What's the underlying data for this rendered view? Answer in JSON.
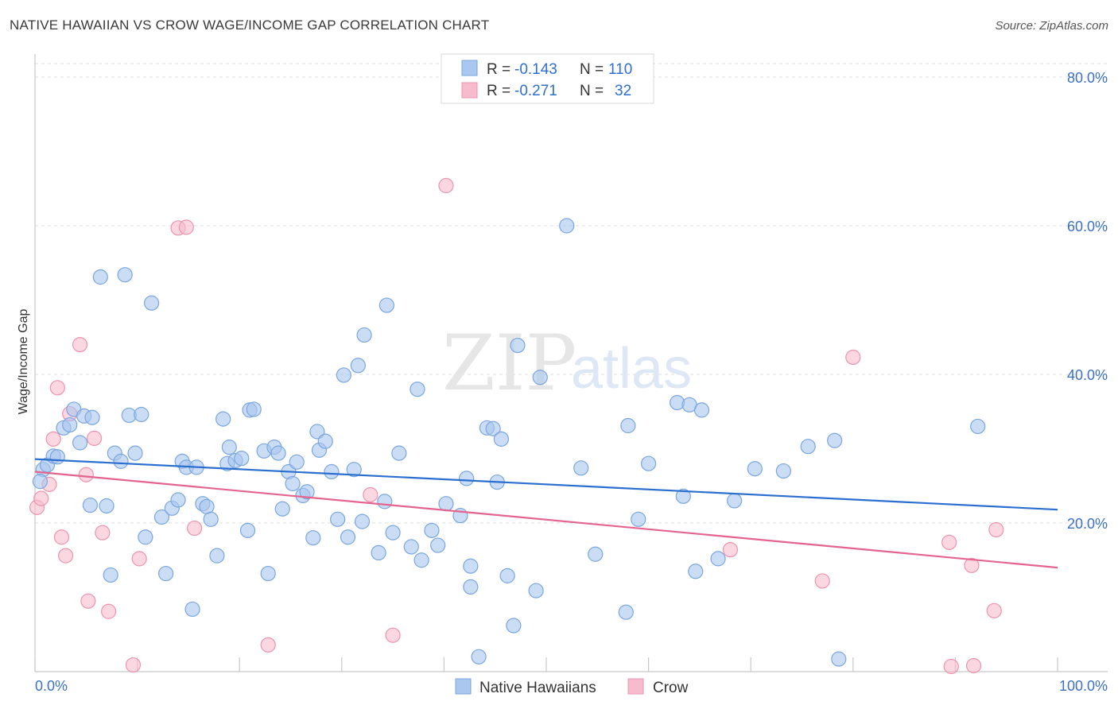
{
  "header": {
    "title": "NATIVE HAWAIIAN VS CROW WAGE/INCOME GAP CORRELATION CHART",
    "source": "Source: ZipAtlas.com"
  },
  "watermark": {
    "zip": "ZIP",
    "atlas": "atlas"
  },
  "colors": {
    "blue_fill": "#a9c7ef",
    "blue_stroke": "#7aa6df",
    "blue_line": "#2a6fd0",
    "pink_fill": "#f6bccd",
    "pink_stroke": "#ee93ae",
    "pink_line": "#e4648f",
    "grid": "#dcdcdc",
    "axis_label": "#3a70c6"
  },
  "legend": {
    "rows": [
      {
        "r_label": "R =",
        "r_value": "-0.143",
        "n_label": "N =",
        "n_value": "110",
        "color": "blue"
      },
      {
        "r_label": "R =",
        "r_value": "-0.271",
        "n_label": "N =",
        "n_value": "32",
        "color": "pink"
      }
    ]
  },
  "bottom_legend": [
    {
      "label": "Native Hawaiians",
      "color": "blue"
    },
    {
      "label": "Crow",
      "color": "pink"
    }
  ],
  "chart_data": {
    "type": "scatter",
    "title": "NATIVE HAWAIIAN VS CROW WAGE/INCOME GAP CORRELATION CHART",
    "xlabel": "",
    "ylabel": "Wage/Income Gap",
    "xlim": [
      0,
      100
    ],
    "ylim": [
      0,
      80
    ],
    "x_tick_labels": [
      "0.0%",
      "100.0%"
    ],
    "y_ticks": [
      20,
      40,
      60,
      80
    ],
    "y_tick_labels": [
      "20.0%",
      "40.0%",
      "60.0%",
      "80.0%"
    ],
    "grid": true,
    "legend_position": "top-center",
    "series": [
      {
        "name": "Native Hawaiians",
        "color": "#a9c7ef",
        "trend": {
          "x": [
            0,
            100
          ],
          "y": [
            28.6,
            21.8
          ]
        },
        "points": [
          [
            0.8,
            27.2
          ],
          [
            1.2,
            27.8
          ],
          [
            1.8,
            29.0
          ],
          [
            2.2,
            28.9
          ],
          [
            2.8,
            32.8
          ],
          [
            3.4,
            33.2
          ],
          [
            3.8,
            35.3
          ],
          [
            4.4,
            30.8
          ],
          [
            4.8,
            34.4
          ],
          [
            5.6,
            34.2
          ],
          [
            5.4,
            22.4
          ],
          [
            6.4,
            53.1
          ],
          [
            7.0,
            22.3
          ],
          [
            7.4,
            13.0
          ],
          [
            7.8,
            29.4
          ],
          [
            8.4,
            28.3
          ],
          [
            8.8,
            53.4
          ],
          [
            9.2,
            34.5
          ],
          [
            9.8,
            29.4
          ],
          [
            10.4,
            34.6
          ],
          [
            10.8,
            18.1
          ],
          [
            11.4,
            49.6
          ],
          [
            12.4,
            20.8
          ],
          [
            12.8,
            13.2
          ],
          [
            13.4,
            22.0
          ],
          [
            14.0,
            23.1
          ],
          [
            14.4,
            28.3
          ],
          [
            14.8,
            27.5
          ],
          [
            15.4,
            8.4
          ],
          [
            15.8,
            27.5
          ],
          [
            16.4,
            22.6
          ],
          [
            16.8,
            22.2
          ],
          [
            17.2,
            20.5
          ],
          [
            17.8,
            15.6
          ],
          [
            18.4,
            34.0
          ],
          [
            18.8,
            28.0
          ],
          [
            19.0,
            30.2
          ],
          [
            19.6,
            28.4
          ],
          [
            20.2,
            28.7
          ],
          [
            20.8,
            19.0
          ],
          [
            21.0,
            35.2
          ],
          [
            21.4,
            35.3
          ],
          [
            22.4,
            29.7
          ],
          [
            22.8,
            13.2
          ],
          [
            23.4,
            30.2
          ],
          [
            23.8,
            29.4
          ],
          [
            24.2,
            21.9
          ],
          [
            24.8,
            26.9
          ],
          [
            25.2,
            25.3
          ],
          [
            25.6,
            28.2
          ],
          [
            26.2,
            23.7
          ],
          [
            26.6,
            24.2
          ],
          [
            27.2,
            18.0
          ],
          [
            27.6,
            32.3
          ],
          [
            27.8,
            29.8
          ],
          [
            28.4,
            31.0
          ],
          [
            29.0,
            26.9
          ],
          [
            29.6,
            20.5
          ],
          [
            30.2,
            39.9
          ],
          [
            30.6,
            18.1
          ],
          [
            31.2,
            27.2
          ],
          [
            31.6,
            41.2
          ],
          [
            32.2,
            45.3
          ],
          [
            32.0,
            20.2
          ],
          [
            33.6,
            16.0
          ],
          [
            34.4,
            49.3
          ],
          [
            34.2,
            22.9
          ],
          [
            35.0,
            18.7
          ],
          [
            35.6,
            29.4
          ],
          [
            36.8,
            16.8
          ],
          [
            37.4,
            38.0
          ],
          [
            37.8,
            15.0
          ],
          [
            38.8,
            19.0
          ],
          [
            39.4,
            17.0
          ],
          [
            40.2,
            22.6
          ],
          [
            41.6,
            21.0
          ],
          [
            42.2,
            26.0
          ],
          [
            42.6,
            14.2
          ],
          [
            42.6,
            11.4
          ],
          [
            43.4,
            2.0
          ],
          [
            44.2,
            32.8
          ],
          [
            44.8,
            32.7
          ],
          [
            45.2,
            25.5
          ],
          [
            45.6,
            31.3
          ],
          [
            46.2,
            12.9
          ],
          [
            46.8,
            6.2
          ],
          [
            47.2,
            43.9
          ],
          [
            49.0,
            10.9
          ],
          [
            49.4,
            39.6
          ],
          [
            52.0,
            60.0
          ],
          [
            53.4,
            27.4
          ],
          [
            54.8,
            15.8
          ],
          [
            57.8,
            8.0
          ],
          [
            58.0,
            33.1
          ],
          [
            59.0,
            20.5
          ],
          [
            60.0,
            28.0
          ],
          [
            62.8,
            36.2
          ],
          [
            63.4,
            23.6
          ],
          [
            64.0,
            35.9
          ],
          [
            64.6,
            13.5
          ],
          [
            65.2,
            35.2
          ],
          [
            66.8,
            15.2
          ],
          [
            68.4,
            23.0
          ],
          [
            70.4,
            27.3
          ],
          [
            73.2,
            27.0
          ],
          [
            75.6,
            30.3
          ],
          [
            78.2,
            31.1
          ],
          [
            78.6,
            1.7
          ],
          [
            92.2,
            33.0
          ],
          [
            0.5,
            25.6
          ]
        ]
      },
      {
        "name": "Crow",
        "color": "#f6bccd",
        "trend": {
          "x": [
            0,
            100
          ],
          "y": [
            26.9,
            14.0
          ]
        },
        "points": [
          [
            0.2,
            22.1
          ],
          [
            0.6,
            23.3
          ],
          [
            1.4,
            25.2
          ],
          [
            1.8,
            31.3
          ],
          [
            2.2,
            38.2
          ],
          [
            2.6,
            18.1
          ],
          [
            3.0,
            15.6
          ],
          [
            3.4,
            34.7
          ],
          [
            4.4,
            44.0
          ],
          [
            5.0,
            26.5
          ],
          [
            5.2,
            9.5
          ],
          [
            5.8,
            31.4
          ],
          [
            6.6,
            18.7
          ],
          [
            7.2,
            8.1
          ],
          [
            9.6,
            0.9
          ],
          [
            10.2,
            15.2
          ],
          [
            14.0,
            59.7
          ],
          [
            14.8,
            59.8
          ],
          [
            15.6,
            19.3
          ],
          [
            22.8,
            3.6
          ],
          [
            32.8,
            23.8
          ],
          [
            35.0,
            4.9
          ],
          [
            40.2,
            65.4
          ],
          [
            68.0,
            16.4
          ],
          [
            77.0,
            12.2
          ],
          [
            80.0,
            42.3
          ],
          [
            89.4,
            17.4
          ],
          [
            89.6,
            0.7
          ],
          [
            91.6,
            14.3
          ],
          [
            91.8,
            0.8
          ],
          [
            93.8,
            8.2
          ],
          [
            94.0,
            19.1
          ]
        ]
      }
    ]
  }
}
